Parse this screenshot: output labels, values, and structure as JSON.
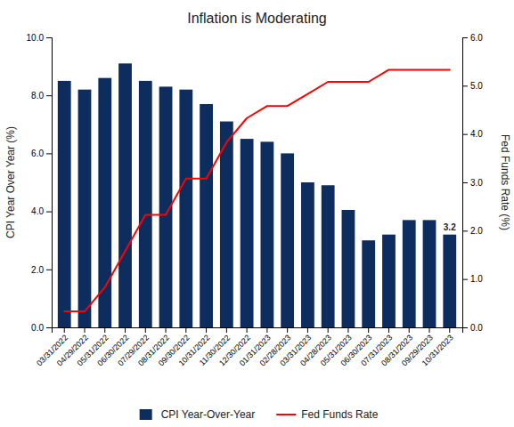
{
  "chart_data": {
    "type": "bar",
    "title": "Inflation is Moderating",
    "categories": [
      "03/31/2022",
      "04/29/2022",
      "05/31/2022",
      "06/30/2022",
      "07/29/2022",
      "08/31/2022",
      "09/30/2022",
      "10/31/2022",
      "11/30/2022",
      "12/30/2022",
      "01/31/2023",
      "02/28/2023",
      "03/31/2023",
      "04/28/2023",
      "05/31/2023",
      "06/30/2023",
      "07/31/2023",
      "08/31/2023",
      "09/29/2023",
      "10/31/2023"
    ],
    "series": [
      {
        "name": "CPI Year-Over-Year",
        "type": "bar",
        "color": "#0d2d5e",
        "values": [
          8.5,
          8.2,
          8.6,
          9.1,
          8.5,
          8.3,
          8.2,
          7.7,
          7.1,
          6.5,
          6.4,
          6.0,
          5.0,
          4.9,
          4.05,
          3.0,
          3.2,
          3.7,
          3.7,
          3.2
        ]
      },
      {
        "name": "Fed Funds Rate",
        "type": "line",
        "color": "#ff0000",
        "axis": "y2",
        "values": [
          0.33,
          0.33,
          0.83,
          1.58,
          2.33,
          2.33,
          3.08,
          3.08,
          3.83,
          4.33,
          4.58,
          4.58,
          4.83,
          5.08,
          5.08,
          5.08,
          5.33,
          5.33,
          5.33,
          5.33
        ]
      }
    ],
    "ylabel": "CPI Year Over Year (%)",
    "y2label": "Fed Funds Rate (%)",
    "ylim": [
      0,
      10.0
    ],
    "yticks": [
      {
        "value": 0,
        "label": "0.0"
      },
      {
        "value": 2,
        "label": "2.0"
      },
      {
        "value": 4,
        "label": "4.0"
      },
      {
        "value": 6,
        "label": "6.0"
      },
      {
        "value": 8,
        "label": "8.0"
      },
      {
        "value": 10,
        "label": "10.0"
      }
    ],
    "y2lim": [
      0.0,
      6.0
    ],
    "y2ticks": [
      {
        "value": 0,
        "label": "0.0"
      },
      {
        "value": 1,
        "label": "1.0"
      },
      {
        "value": 2,
        "label": "2.0"
      },
      {
        "value": 3,
        "label": "3.0"
      },
      {
        "value": 4,
        "label": "4.0"
      },
      {
        "value": 5,
        "label": "5.0"
      },
      {
        "value": 6,
        "label": "6.0"
      }
    ],
    "annotations": [
      {
        "text": "3.2",
        "x": "10/31/2023",
        "y": 3.2
      }
    ],
    "grid": false,
    "legend": "bottom"
  }
}
